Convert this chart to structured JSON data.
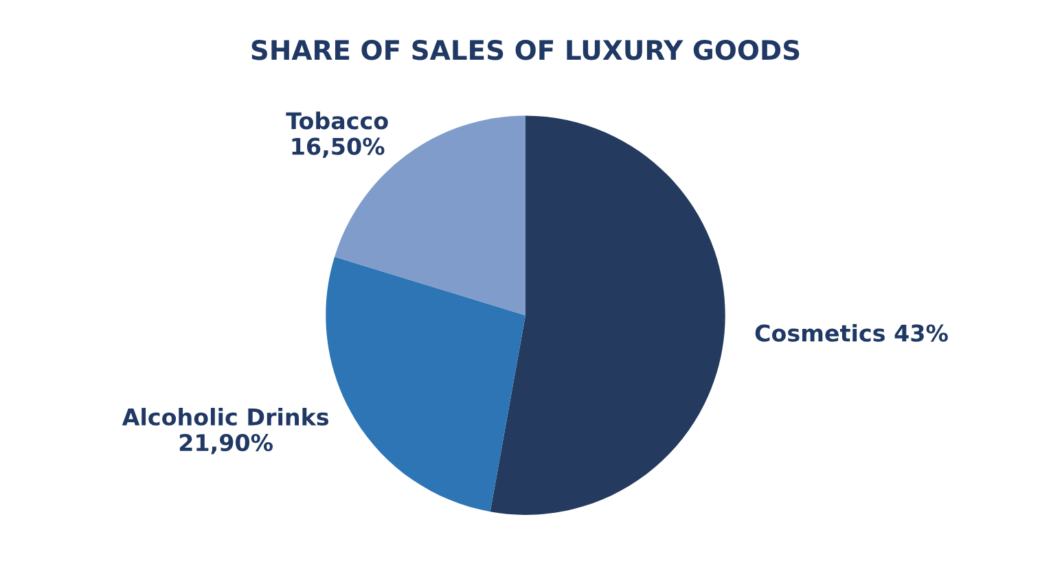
{
  "chart_data": {
    "type": "pie",
    "title": "SHARE OF SALES OF LUXURY GOODS",
    "categories": [
      "Cosmetics",
      "Alcoholic Drinks",
      "Tobacco"
    ],
    "values": [
      43,
      21.9,
      16.5
    ],
    "value_labels": [
      "43%",
      "21,90%",
      "16,50%"
    ],
    "colors": [
      "#243a5e",
      "#2e75b6",
      "#7f9ccb"
    ]
  }
}
